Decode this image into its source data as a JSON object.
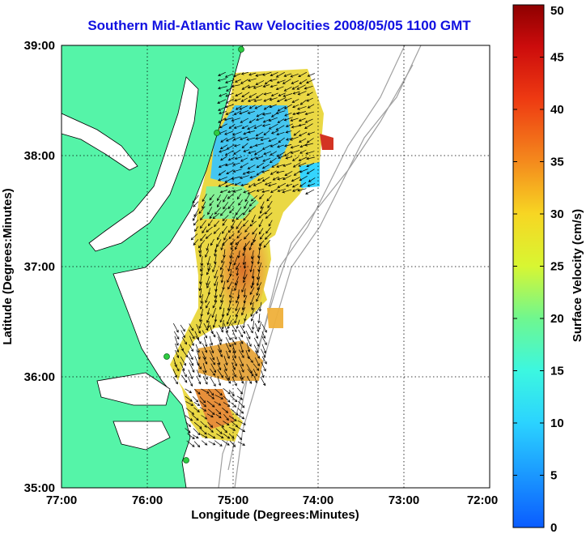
{
  "title": "Southern Mid-Atlantic Raw Velocities 2008/05/05 1100 GMT",
  "x_axis": {
    "label": "Longitude (Degrees:Minutes)",
    "ticks": [
      "77:00",
      "76:00",
      "75:00",
      "74:00",
      "73:00",
      "72:00"
    ]
  },
  "y_axis": {
    "label": "Latitude (Degrees:Minutes)",
    "ticks": [
      "39:00",
      "38:00",
      "37:00",
      "36:00",
      "35:00"
    ]
  },
  "colorbar": {
    "label": "Surface Velocity (cm/s)",
    "ticks": [
      "0",
      "5",
      "10",
      "15",
      "20",
      "25",
      "30",
      "35",
      "40",
      "45",
      "50"
    ],
    "min": 0,
    "max": 50
  },
  "colors": {
    "title": "#1010e0",
    "land": "#55f4a8",
    "grid": "#000000",
    "bathymetry": "#a0a0a0",
    "station": "#2ecc40"
  },
  "grid": "dotted"
}
